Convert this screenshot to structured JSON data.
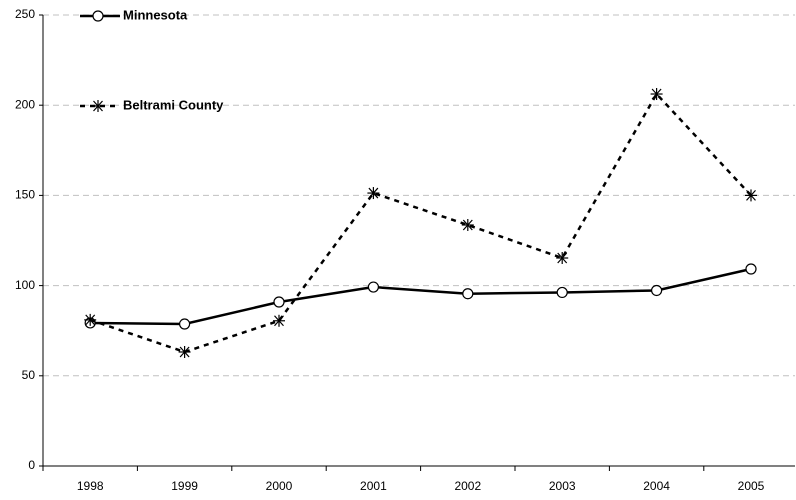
{
  "chart_data": {
    "type": "line",
    "categories": [
      "1998",
      "1999",
      "2000",
      "2001",
      "2002",
      "2003",
      "2004",
      "2005"
    ],
    "series": [
      {
        "name": "Minnesota",
        "color": "#000000",
        "style": "solid",
        "marker": "circle",
        "values": [
          79.3,
          78.7,
          90.9,
          99.2,
          95.5,
          96.2,
          97.3,
          109.2
        ]
      },
      {
        "name": "Beltrami County",
        "color": "#000000",
        "style": "dashed",
        "marker": "star",
        "values": [
          81,
          63.2,
          80.5,
          151.3,
          133.6,
          115.3,
          206.2,
          150
        ]
      }
    ],
    "ylim": [
      0,
      250
    ],
    "yticks": [
      0,
      50,
      100,
      150,
      200,
      250
    ],
    "grid": true
  }
}
